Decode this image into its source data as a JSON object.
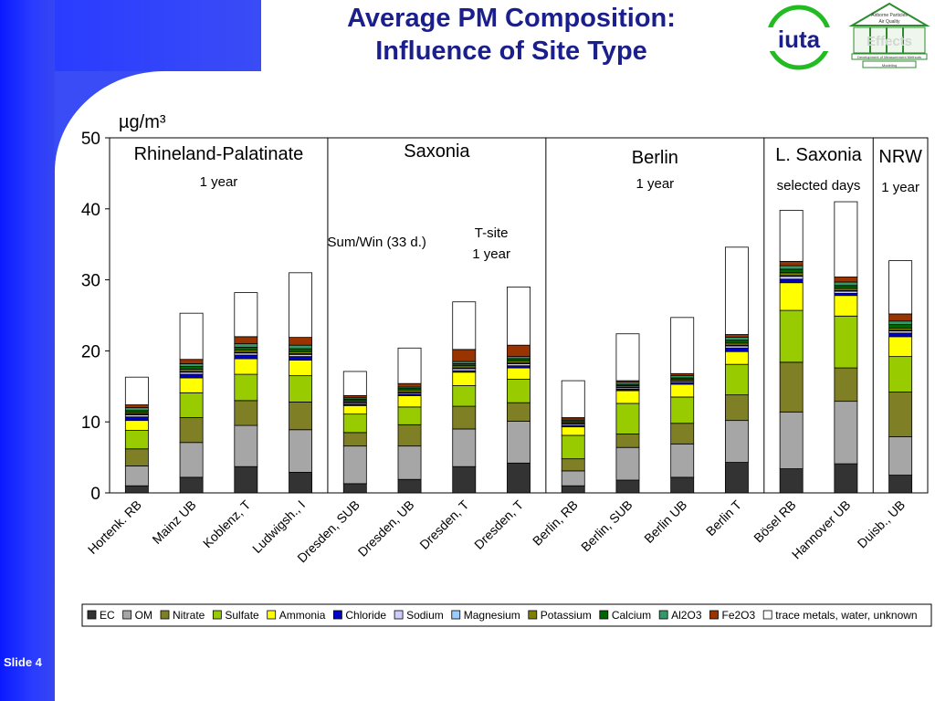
{
  "slide": {
    "title_line1": "Average PM Composition:",
    "title_line2": "Influence of Site Type",
    "slide_label": "Slide 4",
    "iuta_logo_text": "iuta",
    "temple_logo_header": "Airborne Particles",
    "temple_logo_header2": "Air Quality",
    "temple_logo_band": "Development of Measurement Methods",
    "temple_logo_base": "Modeling",
    "temple_logo_word": "Effects"
  },
  "chart_data": {
    "type": "bar",
    "stacked": true,
    "ylabel": "µg/m³",
    "ylim": [
      0,
      50
    ],
    "yticks": [
      0,
      10,
      20,
      30,
      40,
      50
    ],
    "grid": false,
    "legend_position": "bottom",
    "categories": [
      "Hortenk. RB",
      "Mainz UB",
      "Koblenz, T",
      "Ludwigsh., I",
      "Dresden, SUB",
      "Dresden, UB",
      "Dresden, T",
      "Dresden, T",
      "Berlin, RB",
      "Berlin, SUB",
      "Berlin UB",
      "Berlin T",
      "Bösel RB",
      "Hannover UB",
      "Duisb., UB"
    ],
    "regions": [
      {
        "name": "Rhineland-Palatinate",
        "note": "1 year",
        "start": 0,
        "end": 3
      },
      {
        "name": "Saxonia",
        "note": "Sum/Win (33 d.)",
        "note2_line1": "T-site",
        "note2_line2": "1 year",
        "start": 4,
        "end": 7
      },
      {
        "name": "Berlin",
        "note": "1 year",
        "start": 8,
        "end": 11
      },
      {
        "name": "L. Saxonia",
        "note": "selected days",
        "start": 12,
        "end": 13
      },
      {
        "name": "NRW",
        "note": "1 year",
        "start": 14,
        "end": 14
      }
    ],
    "series": [
      {
        "name": "EC",
        "color": "#333333",
        "values": [
          1.0,
          2.2,
          3.7,
          2.9,
          1.3,
          1.9,
          3.7,
          4.2,
          1.0,
          1.8,
          2.2,
          4.3,
          3.4,
          4.1,
          2.5
        ]
      },
      {
        "name": "OM",
        "color": "#a6a6a6",
        "values": [
          2.8,
          4.9,
          5.8,
          6.0,
          5.3,
          4.7,
          5.3,
          5.9,
          2.1,
          4.6,
          4.7,
          5.9,
          8.0,
          8.8,
          5.4
        ]
      },
      {
        "name": "Nitrate",
        "color": "#7f7f26",
        "values": [
          2.4,
          3.5,
          3.5,
          3.9,
          1.9,
          3.0,
          3.2,
          2.6,
          1.7,
          1.9,
          2.9,
          3.6,
          7.0,
          4.7,
          6.3
        ]
      },
      {
        "name": "Sulfate",
        "color": "#99cc00",
        "values": [
          2.6,
          3.5,
          3.7,
          3.7,
          2.6,
          2.5,
          2.9,
          3.3,
          3.3,
          4.3,
          3.7,
          4.3,
          7.3,
          7.3,
          5.0
        ]
      },
      {
        "name": "Ammonia",
        "color": "#ffff00",
        "values": [
          1.4,
          2.1,
          2.2,
          2.2,
          1.2,
          1.6,
          1.9,
          1.6,
          1.2,
          1.8,
          1.8,
          1.8,
          3.9,
          2.9,
          2.8
        ]
      },
      {
        "name": "Chloride",
        "color": "#0000cc",
        "values": [
          0.5,
          0.5,
          0.5,
          0.5,
          0.2,
          0.2,
          0.2,
          0.3,
          0.2,
          0.2,
          0.2,
          0.5,
          0.5,
          0.3,
          0.5
        ]
      },
      {
        "name": "Sodium",
        "color": "#ccccff",
        "values": [
          0.3,
          0.3,
          0.3,
          0.3,
          0.2,
          0.2,
          0.3,
          0.3,
          0.2,
          0.2,
          0.2,
          0.3,
          0.4,
          0.3,
          0.3
        ]
      },
      {
        "name": "Magnesium",
        "color": "#99ccff",
        "values": [
          0.1,
          0.1,
          0.1,
          0.1,
          0.1,
          0.1,
          0.1,
          0.1,
          0.1,
          0.1,
          0.1,
          0.1,
          0.1,
          0.1,
          0.1
        ]
      },
      {
        "name": "Potassium",
        "color": "#808000",
        "values": [
          0.2,
          0.3,
          0.3,
          0.3,
          0.2,
          0.3,
          0.3,
          0.3,
          0.2,
          0.2,
          0.2,
          0.3,
          0.4,
          0.3,
          0.3
        ]
      },
      {
        "name": "Calcium",
        "color": "#006600",
        "values": [
          0.3,
          0.4,
          0.4,
          0.4,
          0.2,
          0.2,
          0.3,
          0.3,
          0.2,
          0.2,
          0.2,
          0.4,
          0.5,
          0.4,
          0.5
        ]
      },
      {
        "name": "Al2O3",
        "color": "#339966",
        "values": [
          0.4,
          0.4,
          0.5,
          0.5,
          0.2,
          0.2,
          0.3,
          0.3,
          0.2,
          0.3,
          0.3,
          0.4,
          0.5,
          0.5,
          0.5
        ]
      },
      {
        "name": "Fe2O3",
        "color": "#993300",
        "values": [
          0.4,
          0.6,
          1.0,
          1.1,
          0.3,
          0.5,
          1.7,
          1.6,
          0.2,
          0.2,
          0.3,
          0.4,
          0.6,
          0.7,
          1.0
        ]
      },
      {
        "name": "trace metals, water, unknown",
        "color": "#ffffff",
        "values": [
          3.9,
          6.5,
          6.2,
          9.1,
          3.4,
          5.0,
          6.7,
          8.2,
          5.2,
          6.6,
          7.9,
          12.3,
          7.2,
          10.6,
          7.5
        ]
      }
    ]
  }
}
